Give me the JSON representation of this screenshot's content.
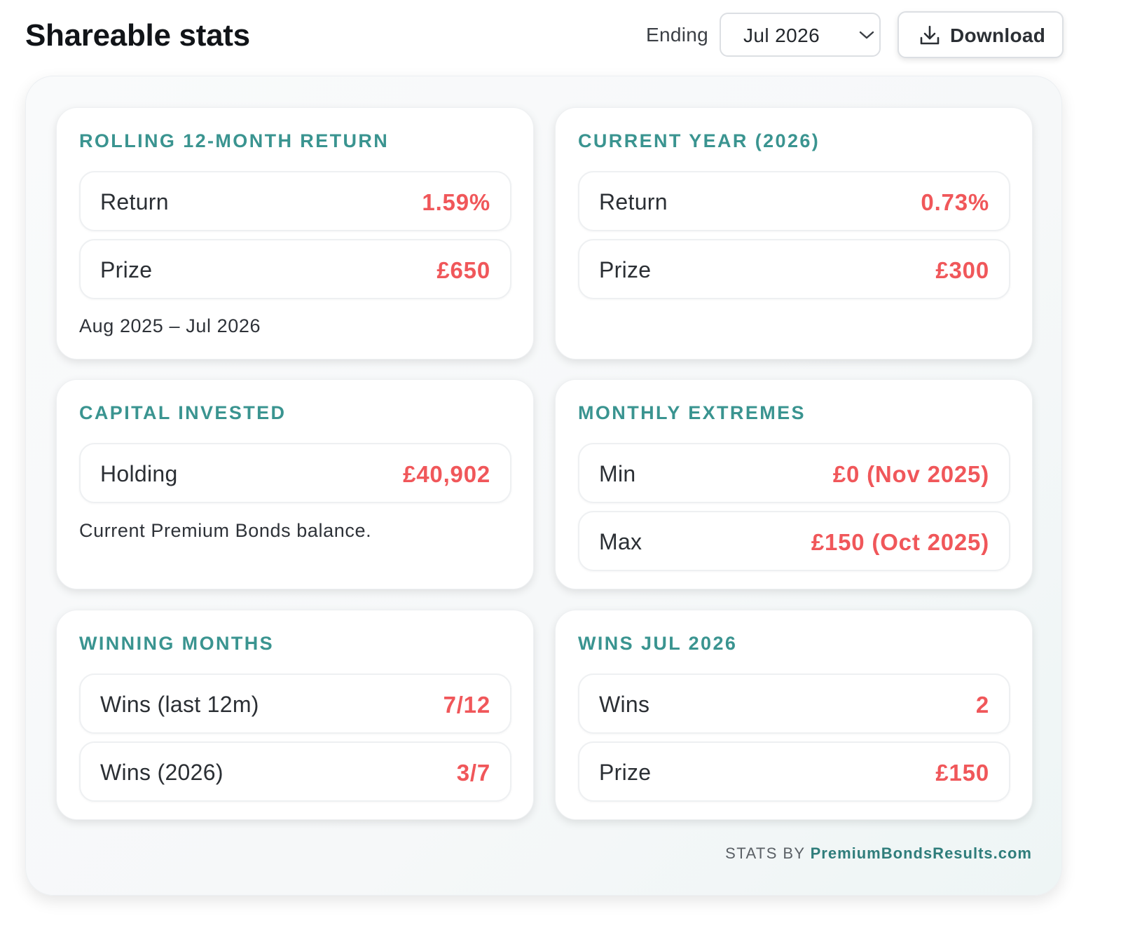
{
  "header": {
    "title": "Shareable stats",
    "ending_label": "Ending",
    "ending_value": "Jul 2026",
    "download_label": "Download"
  },
  "panels": {
    "rolling": {
      "title": "Rolling 12-month return",
      "rows": [
        {
          "label": "Return",
          "value": "1.59%"
        },
        {
          "label": "Prize",
          "value": "£650"
        }
      ],
      "note": "Aug 2025 – Jul 2026"
    },
    "current_year": {
      "title": "Current year (2026)",
      "rows": [
        {
          "label": "Return",
          "value": "0.73%"
        },
        {
          "label": "Prize",
          "value": "£300"
        }
      ]
    },
    "capital": {
      "title": "Capital invested",
      "rows": [
        {
          "label": "Holding",
          "value": "£40,902"
        }
      ],
      "note": "Current Premium Bonds balance."
    },
    "extremes": {
      "title": "Monthly extremes",
      "rows": [
        {
          "label": "Min",
          "value": "£0 (Nov 2025)"
        },
        {
          "label": "Max",
          "value": "£150 (Oct 2025)"
        }
      ]
    },
    "winning": {
      "title": "Winning months",
      "rows": [
        {
          "label": "Wins (last 12m)",
          "value": "7/12"
        },
        {
          "label": "Wins (2026)",
          "value": "3/7"
        }
      ]
    },
    "wins_month": {
      "title": "Wins Jul 2026",
      "rows": [
        {
          "label": "Wins",
          "value": "2"
        },
        {
          "label": "Prize",
          "value": "£150"
        }
      ]
    }
  },
  "footer": {
    "prefix": "STATS BY",
    "brand": "PremiumBondsResults.com"
  },
  "colors": {
    "accent_teal": "#3a9490",
    "value_red": "#f0575a"
  },
  "icons": {
    "select": "chevron-down-icon",
    "download": "download-icon"
  }
}
